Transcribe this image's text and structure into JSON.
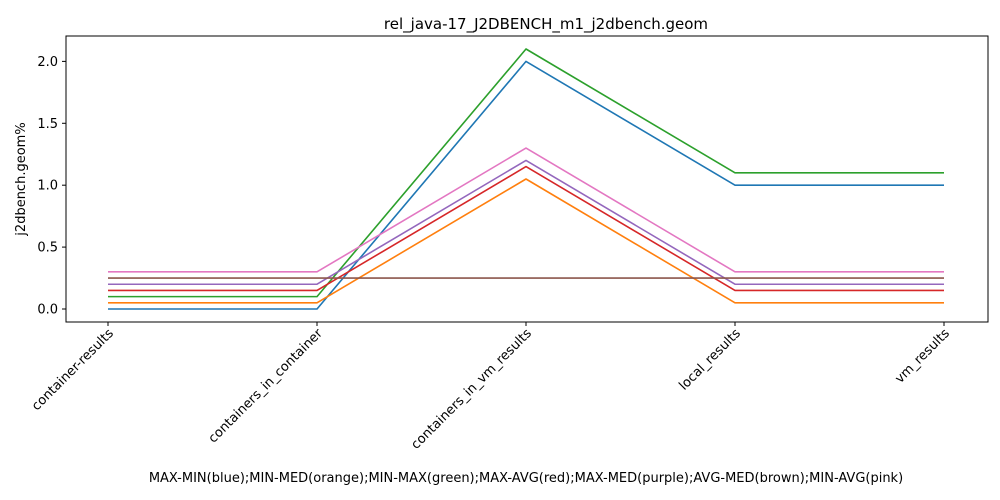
{
  "chart_data": {
    "type": "line",
    "title": "rel_java-17_J2DBENCH_m1_j2dbench.geom",
    "xlabel": "MAX-MIN(blue);MIN-MED(orange);MIN-MAX(green);MAX-AVG(red);MAX-MED(purple);AVG-MED(brown);MIN-AVG(pink)",
    "ylabel": "j2dbench.geom%",
    "categories": [
      "container-results",
      "containers_in_container",
      "containers_in_vm_results",
      "local_results",
      "vm_results"
    ],
    "ylim": [
      -0.105,
      2.205
    ],
    "yticks": [
      "0.0",
      "0.5",
      "1.0",
      "1.5",
      "2.0"
    ],
    "ytick_values": [
      0.0,
      0.5,
      1.0,
      1.5,
      2.0
    ],
    "grid": false,
    "series": [
      {
        "color": "#1f77b4",
        "values": [
          0.0,
          0.0,
          2.0,
          1.0,
          1.0
        ]
      },
      {
        "color": "#ff7f0e",
        "values": [
          0.05,
          0.05,
          1.05,
          0.05,
          0.05
        ]
      },
      {
        "color": "#2ca02c",
        "values": [
          0.1,
          0.1,
          2.1,
          1.1,
          1.1
        ]
      },
      {
        "color": "#d62728",
        "values": [
          0.15,
          0.15,
          1.15,
          0.15,
          0.15
        ]
      },
      {
        "color": "#9467bd",
        "values": [
          0.2,
          0.2,
          1.2,
          0.2,
          0.2
        ]
      },
      {
        "color": "#8c564b",
        "values": [
          0.25,
          0.25,
          0.25,
          0.25,
          0.25
        ]
      },
      {
        "color": "#e377c2",
        "values": [
          0.3,
          0.3,
          1.3,
          0.3,
          0.3
        ]
      }
    ]
  }
}
